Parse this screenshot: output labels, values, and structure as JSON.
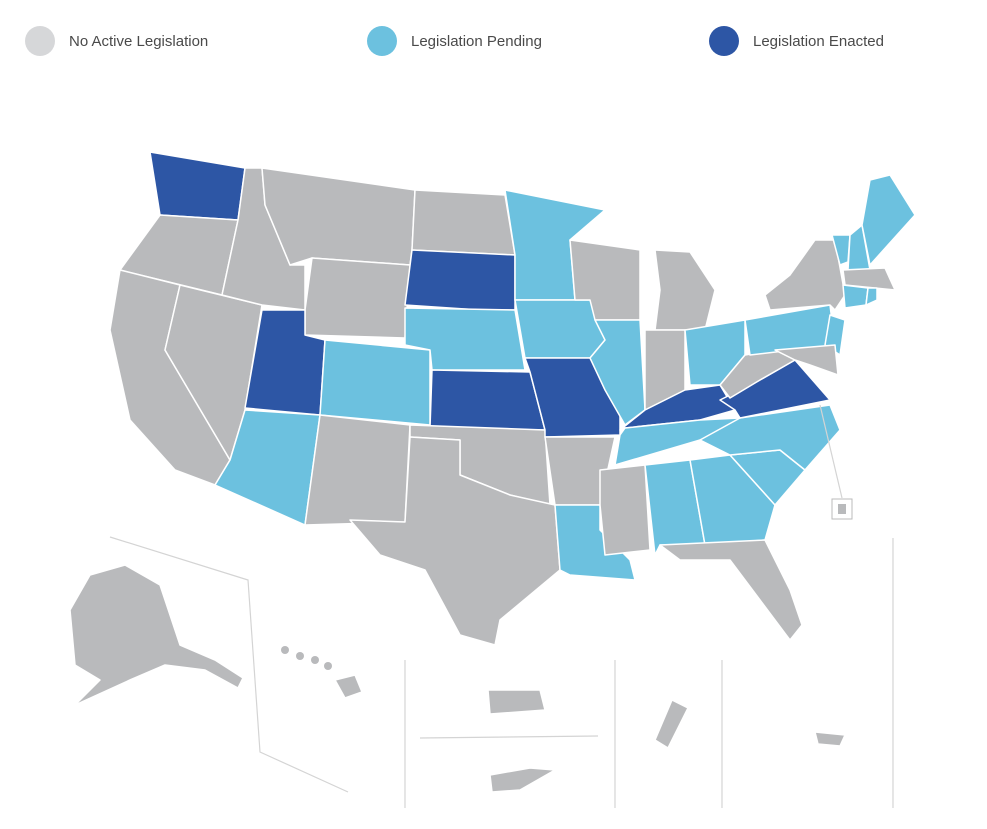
{
  "legend": [
    {
      "label": "No Active Legislation",
      "color": "#d6d7d9"
    },
    {
      "label": "Legislation Pending",
      "color": "#6cc1df"
    },
    {
      "label": "Legislation Enacted",
      "color": "#2d56a5"
    }
  ]
}
